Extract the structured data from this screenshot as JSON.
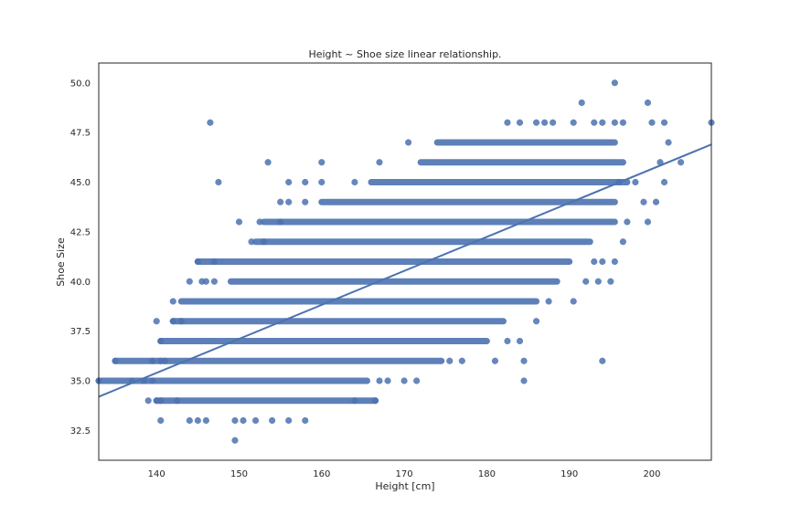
{
  "chart_data": {
    "type": "scatter",
    "title": "Height ~ Shoe size linear relationship.",
    "xlabel": "Height [cm]",
    "ylabel": "Shoe Size",
    "xlim": [
      133,
      207.2
    ],
    "ylim": [
      31,
      51
    ],
    "x_ticks": [
      "140",
      "150",
      "160",
      "170",
      "180",
      "190",
      "200"
    ],
    "y_ticks": [
      "32.5",
      "35.0",
      "37.5",
      "40.0",
      "42.5",
      "45.0",
      "47.5",
      "50.0"
    ],
    "grid": false,
    "marker_color": "#4c72b0",
    "line_color": "#4c72b0",
    "regression_line": {
      "x": [
        133,
        207.2
      ],
      "y": [
        34.2,
        46.9
      ]
    },
    "band_ranges": [
      {
        "shoe_size": 33,
        "x_from": 140.5,
        "x_to": 140.5
      },
      {
        "shoe_size": 34,
        "x_from": 140,
        "x_to": 166.5
      },
      {
        "shoe_size": 35,
        "x_from": 133,
        "x_to": 165.5
      },
      {
        "shoe_size": 36,
        "x_from": 135,
        "x_to": 174.5
      },
      {
        "shoe_size": 37,
        "x_from": 140.5,
        "x_to": 180
      },
      {
        "shoe_size": 38,
        "x_from": 142,
        "x_to": 182
      },
      {
        "shoe_size": 39,
        "x_from": 143,
        "x_to": 186
      },
      {
        "shoe_size": 40,
        "x_from": 149,
        "x_to": 188.5
      },
      {
        "shoe_size": 41,
        "x_from": 145,
        "x_to": 190
      },
      {
        "shoe_size": 42,
        "x_from": 152,
        "x_to": 192.5
      },
      {
        "shoe_size": 43,
        "x_from": 153,
        "x_to": 195.5
      },
      {
        "shoe_size": 44,
        "x_from": 160,
        "x_to": 195.5
      },
      {
        "shoe_size": 45,
        "x_from": 166,
        "x_to": 197
      },
      {
        "shoe_size": 46,
        "x_from": 172,
        "x_to": 196.5
      },
      {
        "shoe_size": 47,
        "x_from": 174,
        "x_to": 195.5
      }
    ],
    "points": [
      [
        149.5,
        32
      ],
      [
        140.5,
        33
      ],
      [
        144,
        33
      ],
      [
        145,
        33
      ],
      [
        146,
        33
      ],
      [
        149.5,
        33
      ],
      [
        150.5,
        33
      ],
      [
        152,
        33
      ],
      [
        154,
        33
      ],
      [
        156,
        33
      ],
      [
        158,
        33
      ],
      [
        139,
        34
      ],
      [
        140,
        34
      ],
      [
        140.5,
        34
      ],
      [
        142.5,
        34
      ],
      [
        164,
        34
      ],
      [
        166.5,
        34
      ],
      [
        133,
        35
      ],
      [
        137,
        35
      ],
      [
        138.5,
        35
      ],
      [
        139.5,
        35
      ],
      [
        167,
        35
      ],
      [
        168,
        35
      ],
      [
        170,
        35
      ],
      [
        171.5,
        35
      ],
      [
        184.5,
        35
      ],
      [
        135,
        36
      ],
      [
        139.5,
        36
      ],
      [
        140.5,
        36
      ],
      [
        141,
        36
      ],
      [
        175.5,
        36
      ],
      [
        177,
        36
      ],
      [
        181,
        36
      ],
      [
        184.5,
        36
      ],
      [
        194,
        36
      ],
      [
        140.5,
        37
      ],
      [
        182.5,
        37
      ],
      [
        184,
        37
      ],
      [
        140,
        38
      ],
      [
        142,
        38
      ],
      [
        143,
        38
      ],
      [
        186,
        38
      ],
      [
        142,
        39
      ],
      [
        187.5,
        39
      ],
      [
        190.5,
        39
      ],
      [
        144,
        40
      ],
      [
        145.5,
        40
      ],
      [
        146,
        40
      ],
      [
        147,
        40
      ],
      [
        192,
        40
      ],
      [
        193.5,
        40
      ],
      [
        195,
        40
      ],
      [
        145,
        41
      ],
      [
        147,
        41
      ],
      [
        193,
        41
      ],
      [
        194,
        41
      ],
      [
        195.5,
        41
      ],
      [
        151.5,
        42
      ],
      [
        153,
        42
      ],
      [
        196.5,
        42
      ],
      [
        150,
        43
      ],
      [
        152.5,
        43
      ],
      [
        155,
        43
      ],
      [
        197,
        43
      ],
      [
        199.5,
        43
      ],
      [
        155,
        44
      ],
      [
        156,
        44
      ],
      [
        158,
        44
      ],
      [
        199,
        44
      ],
      [
        200.5,
        44
      ],
      [
        147.5,
        45
      ],
      [
        156,
        45
      ],
      [
        158,
        45
      ],
      [
        160,
        45
      ],
      [
        164,
        45
      ],
      [
        196,
        45
      ],
      [
        198,
        45
      ],
      [
        201.5,
        45
      ],
      [
        153.5,
        46
      ],
      [
        160,
        46
      ],
      [
        167,
        46
      ],
      [
        201,
        46
      ],
      [
        203.5,
        46
      ],
      [
        170.5,
        47
      ],
      [
        202,
        47
      ],
      [
        146.5,
        48
      ],
      [
        182.5,
        48
      ],
      [
        184,
        48
      ],
      [
        186,
        48
      ],
      [
        187,
        48
      ],
      [
        188,
        48
      ],
      [
        190.5,
        48
      ],
      [
        193,
        48
      ],
      [
        194,
        48
      ],
      [
        195.5,
        48
      ],
      [
        196.5,
        48
      ],
      [
        200,
        48
      ],
      [
        201.5,
        48
      ],
      [
        207.2,
        48
      ],
      [
        191.5,
        49
      ],
      [
        199.5,
        49
      ],
      [
        195.5,
        50
      ]
    ]
  }
}
